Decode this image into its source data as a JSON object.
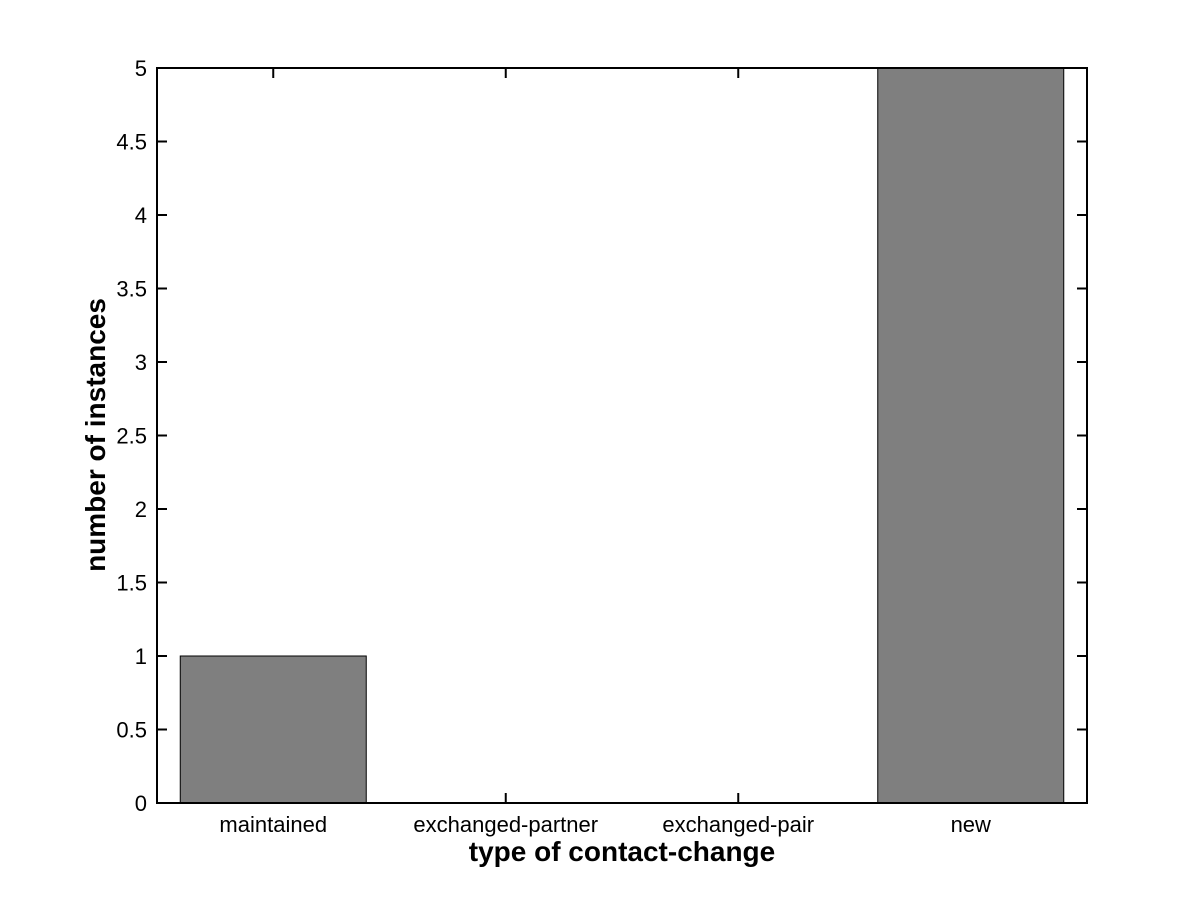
{
  "figure": {
    "background": "#ffffff"
  },
  "chart_data": {
    "type": "bar",
    "title": "",
    "xlabel": "type of contact-change",
    "ylabel": "number of instances",
    "categories": [
      "maintained",
      "exchanged-partner",
      "exchanged-pair",
      "new"
    ],
    "values": [
      1,
      0,
      0,
      5
    ],
    "ylim": [
      0,
      5
    ],
    "ytick_step": 0.5,
    "ytick_labels": [
      "0",
      "0.5",
      "1",
      "1.5",
      "2",
      "2.5",
      "3",
      "3.5",
      "4",
      "4.5",
      "5"
    ],
    "bar_width_fraction": 0.8,
    "grid": false,
    "legend_position": "none",
    "colors": {
      "bar_fill": "#7f7f7f",
      "bar_edge": "#000000",
      "axis": "#000000",
      "text": "#000000"
    }
  }
}
